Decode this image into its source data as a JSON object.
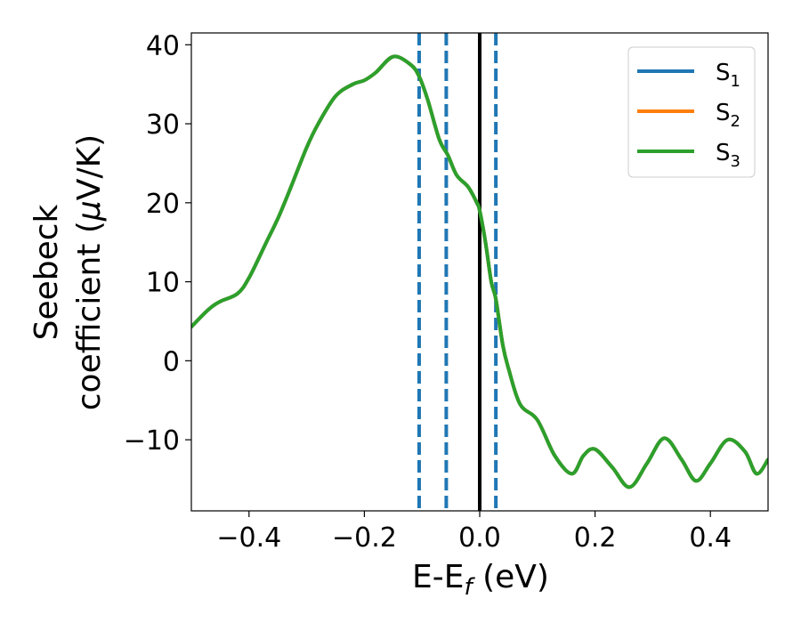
{
  "chart_data": {
    "type": "line",
    "xlabel": {
      "main": "E-E",
      "sub": "f",
      "unit": " (eV)"
    },
    "ylabel": {
      "line1": "Seebeck",
      "line2": "coefficient  (",
      "mu": "μ",
      "unit": "V/K)"
    },
    "xlim": [
      -0.5,
      0.5
    ],
    "ylim": [
      -19,
      41.5
    ],
    "x_ticks": [
      -0.4,
      -0.2,
      0.0,
      0.2,
      0.4
    ],
    "x_tick_labels": [
      "−0.4",
      "−0.2",
      "0.0",
      "0.2",
      "0.4"
    ],
    "y_ticks": [
      -10,
      0,
      10,
      20,
      30,
      40
    ],
    "y_tick_labels": [
      "−10",
      "0",
      "10",
      "20",
      "30",
      "40"
    ],
    "grid": false,
    "legend_position": "top-right",
    "x": [
      -0.5,
      -0.47,
      -0.45,
      -0.42,
      -0.4,
      -0.37,
      -0.35,
      -0.33,
      -0.3,
      -0.28,
      -0.25,
      -0.22,
      -0.2,
      -0.18,
      -0.15,
      -0.12,
      -0.105,
      -0.09,
      -0.07,
      -0.055,
      -0.04,
      -0.02,
      -0.005,
      0.0,
      0.01,
      0.02,
      0.028,
      0.04,
      0.05,
      0.07,
      0.1,
      0.13,
      0.16,
      0.18,
      0.2,
      0.23,
      0.26,
      0.29,
      0.32,
      0.35,
      0.375,
      0.4,
      0.43,
      0.46,
      0.48,
      0.5
    ],
    "series": [
      {
        "name": "S1",
        "label": {
          "base": "S",
          "sub": "1"
        },
        "color": "#1f77b4",
        "values": [
          4.3,
          6.5,
          7.5,
          8.5,
          10.5,
          15.0,
          18.0,
          21.5,
          27.0,
          30.0,
          33.5,
          35.0,
          35.5,
          36.5,
          38.5,
          37.5,
          36.0,
          33.0,
          28.0,
          26.0,
          23.5,
          22.0,
          20.0,
          19.0,
          15.0,
          10.0,
          7.8,
          2.0,
          -1.0,
          -5.5,
          -7.5,
          -12.0,
          -14.3,
          -12.0,
          -11.2,
          -13.5,
          -16.0,
          -13.0,
          -9.8,
          -12.5,
          -15.2,
          -13.0,
          -10.0,
          -11.5,
          -14.3,
          -12.5
        ]
      },
      {
        "name": "S2",
        "label": {
          "base": "S",
          "sub": "2"
        },
        "color": "#ff7f0e",
        "values": [
          4.3,
          6.5,
          7.5,
          8.5,
          10.5,
          15.0,
          18.0,
          21.5,
          27.0,
          30.0,
          33.5,
          35.0,
          35.5,
          36.5,
          38.5,
          37.5,
          36.0,
          33.0,
          28.0,
          26.0,
          23.5,
          22.0,
          20.0,
          19.0,
          15.0,
          10.0,
          7.8,
          2.0,
          -1.0,
          -5.5,
          -7.5,
          -12.0,
          -14.3,
          -12.0,
          -11.2,
          -13.5,
          -16.0,
          -13.0,
          -9.8,
          -12.5,
          -15.2,
          -13.0,
          -10.0,
          -11.5,
          -14.3,
          -12.5
        ]
      },
      {
        "name": "S3",
        "label": {
          "base": "S",
          "sub": "3"
        },
        "color": "#2ca02c",
        "values": [
          4.3,
          6.5,
          7.5,
          8.5,
          10.5,
          15.0,
          18.0,
          21.5,
          27.0,
          30.0,
          33.5,
          35.0,
          35.5,
          36.5,
          38.5,
          37.5,
          36.0,
          33.0,
          28.0,
          26.0,
          23.5,
          22.0,
          20.0,
          19.0,
          15.0,
          10.0,
          7.8,
          2.0,
          -1.0,
          -5.5,
          -7.5,
          -12.0,
          -14.3,
          -12.0,
          -11.2,
          -13.5,
          -16.0,
          -13.0,
          -9.8,
          -12.5,
          -15.2,
          -13.0,
          -10.0,
          -11.5,
          -14.3,
          -12.5
        ]
      }
    ],
    "vlines": [
      {
        "x": -0.105,
        "style": "dashed",
        "color": "#1f77b4"
      },
      {
        "x": -0.058,
        "style": "dashed",
        "color": "#1f77b4"
      },
      {
        "x": 0.0,
        "style": "solid",
        "color": "#000000"
      },
      {
        "x": 0.028,
        "style": "dashed",
        "color": "#1f77b4"
      }
    ]
  }
}
